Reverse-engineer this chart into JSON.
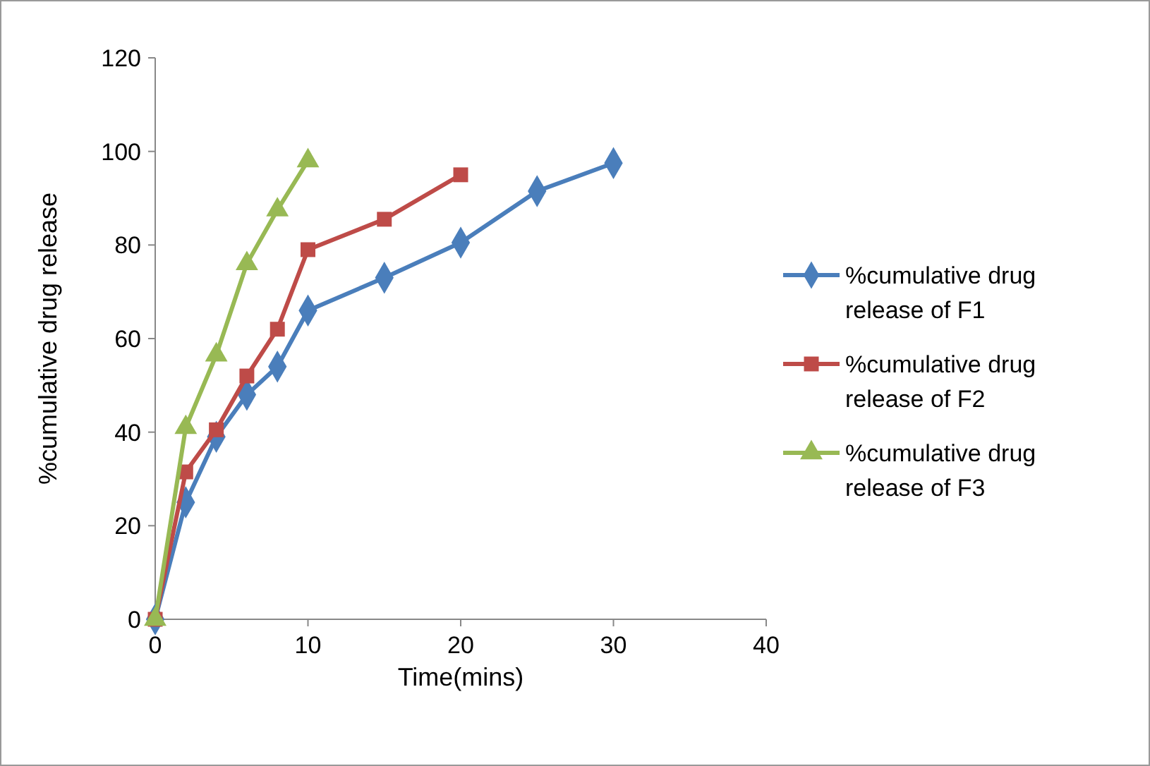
{
  "chart_data": {
    "type": "line",
    "xlabel": "Time(mins)",
    "ylabel": "%cumulative drug release",
    "xlim": [
      0,
      40
    ],
    "xticks": [
      0,
      10,
      20,
      30,
      40
    ],
    "ylim": [
      0,
      120
    ],
    "yticks": [
      0,
      20,
      40,
      60,
      80,
      100,
      120
    ],
    "grid": false,
    "legend": "right",
    "series": [
      {
        "name": "%cumulative drug release of F1",
        "color": "#4a7ebb",
        "marker": "diamond",
        "x": [
          0,
          2,
          4,
          6,
          8,
          10,
          15,
          20,
          25,
          30
        ],
        "values": [
          0,
          25,
          39,
          48,
          54,
          66,
          73,
          80.5,
          91.5,
          97.5
        ]
      },
      {
        "name": "%cumulative drug release of F2",
        "color": "#be4b48",
        "marker": "square",
        "x": [
          0,
          2,
          4,
          6,
          8,
          10,
          15,
          20
        ],
        "values": [
          0,
          31.5,
          40.5,
          52,
          62,
          79,
          85.5,
          95
        ]
      },
      {
        "name": "%cumulative drug release of F3",
        "color": "#98b954",
        "marker": "triangle",
        "x": [
          0,
          2,
          4,
          6,
          8,
          10
        ],
        "values": [
          0,
          41,
          56.5,
          76,
          87.5,
          98
        ]
      }
    ]
  }
}
